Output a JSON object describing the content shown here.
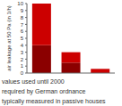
{
  "chart_data": {
    "type": "bar",
    "stacked": true,
    "y_label": "air leakage at 50 Pa (in 1/h)",
    "categories": [
      "values used until 2000",
      "required by German ordnance",
      "typically measured in passive houses"
    ],
    "series": [
      {
        "color": "#8b0000",
        "values": [
          4,
          1.5,
          0
        ]
      },
      {
        "color": "#cc0000",
        "values": [
          6,
          1.5,
          0.6
        ]
      }
    ],
    "ylim": [
      0,
      10
    ],
    "yticks": [
      0,
      1,
      2,
      3,
      4,
      5,
      6,
      7,
      8,
      9,
      10
    ],
    "grid": false
  }
}
